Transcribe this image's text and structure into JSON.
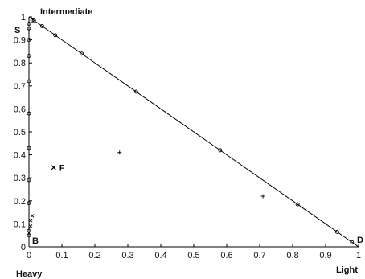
{
  "chart_data": {
    "type": "scatter",
    "title": "",
    "xlabel": "Light",
    "ylabel": "Heavy",
    "xlim": [
      0,
      1
    ],
    "ylim": [
      0,
      1
    ],
    "grid": false,
    "x_ticks": [
      "0",
      "0.1",
      "0.2",
      "0.3",
      "0.4",
      "0.5",
      "0.6",
      "0.7",
      "0.8",
      "0.9",
      "1"
    ],
    "y_ticks": [
      "0",
      "0.1",
      "0.2",
      "0.3",
      "0.4",
      "0.5",
      "0.6",
      "0.7",
      "0.8",
      "0.9",
      "1"
    ],
    "corner_labels": {
      "top": "Intermediate",
      "top_left": "S",
      "bottom_left": "B",
      "bottom_right": "D"
    },
    "boundary_lines": [
      {
        "x": [
          0,
          1
        ],
        "y": [
          1,
          0
        ]
      },
      {
        "x": [
          0,
          0
        ],
        "y": [
          0,
          1
        ]
      }
    ],
    "series": [
      {
        "marker": "circle",
        "x": [
          0,
          0,
          0,
          0,
          0,
          0,
          0,
          0,
          0,
          0,
          0,
          0.01,
          0.015,
          0.04,
          0.08,
          0.16,
          0.325,
          0.58,
          0.815,
          0.935,
          0.98
        ],
        "y": [
          0.05,
          0.07,
          0.19,
          0.29,
          0.43,
          0.58,
          0.72,
          0.83,
          0.9,
          0.95,
          0.97,
          0.985,
          0.985,
          0.96,
          0.92,
          0.84,
          0.675,
          0.42,
          0.185,
          0.065,
          0.02
        ]
      },
      {
        "marker": "cross",
        "x": [
          0,
          0.005,
          0.005,
          0.01
        ],
        "y": [
          0.06,
          0.09,
          0.115,
          0.135
        ]
      },
      {
        "marker": "plus",
        "x": [
          0.275,
          0.71
        ],
        "y": [
          0.41,
          0.22
        ]
      },
      {
        "marker": "x",
        "x": [
          0.075
        ],
        "y": [
          0.345
        ],
        "label": "F"
      }
    ]
  }
}
